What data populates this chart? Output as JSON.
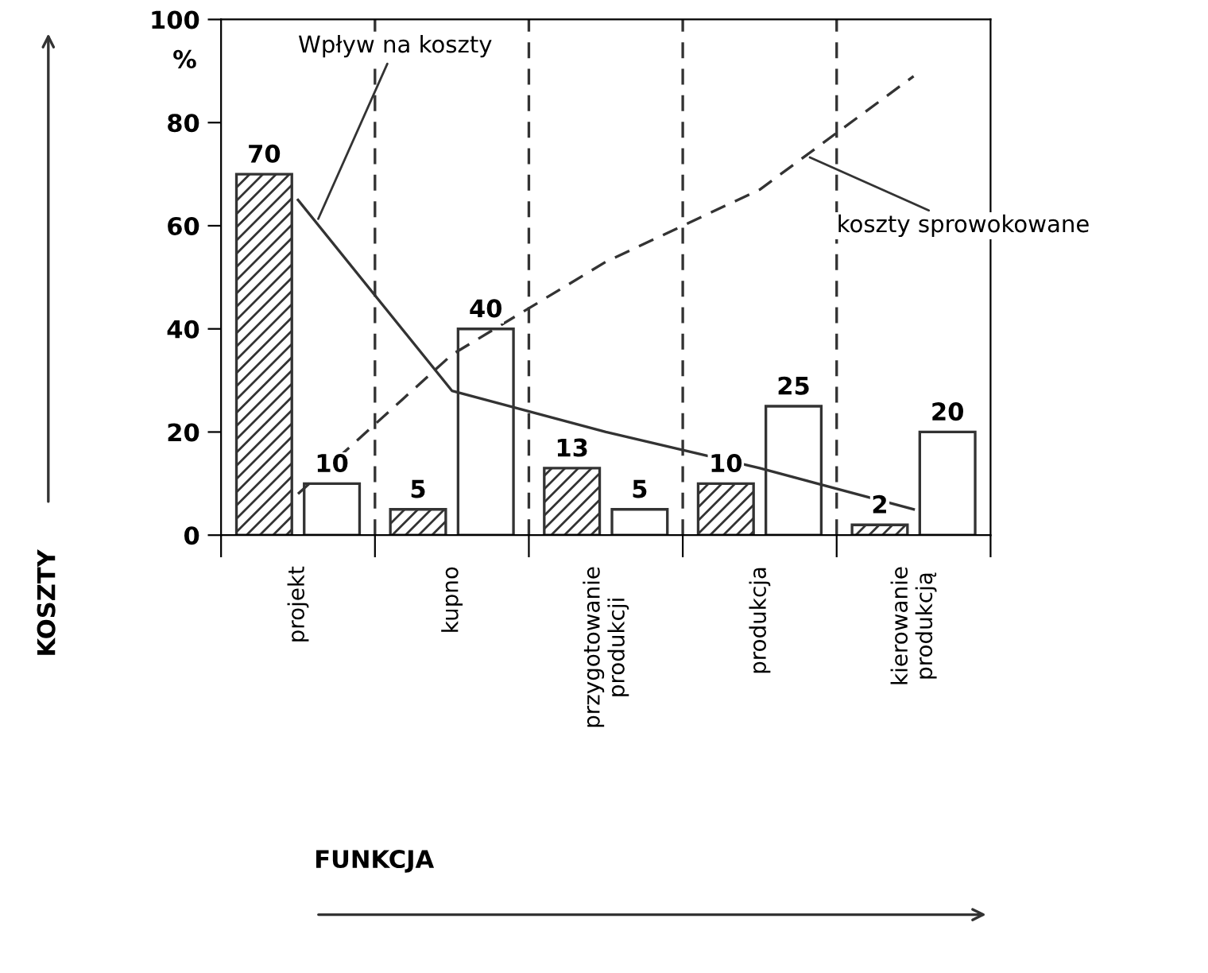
{
  "chart_data": {
    "type": "bar",
    "ylabel": "KOSZTY",
    "categories": [
      "projekt",
      "kupno",
      "przygotowanie\nprodukcji",
      "produkcja",
      "kierowanie\nprodukcją"
    ],
    "series": [
      {
        "color": "#333333",
        "values": [
          70,
          5,
          13,
          10,
          2
        ],
        "value_labels": [
          "70",
          "5",
          "13",
          "10",
          "2"
        ]
      },
      {
        "color": "#333333",
        "values": [
          10,
          40,
          5,
          25,
          20
        ],
        "value_labels": [
          "10",
          "40",
          "5",
          "25",
          "20"
        ]
      },
      {
        "type": "line",
        "name": "Wpływ na koszty",
        "color": "#333333",
        "line_style": "solid",
        "values": [
          65,
          28,
          20,
          13,
          5
        ]
      },
      {
        "type": "line",
        "name": "koszty sprowokowane",
        "color": "#333333",
        "line_style": "dashed",
        "values": [
          8,
          35,
          53,
          67,
          89
        ]
      }
    ],
    "ylim": [
      0,
      100
    ],
    "yticks": [
      0,
      20,
      40,
      60,
      80,
      100
    ],
    "grid": false,
    "annotations": [
      "%",
      "FUNKCJA"
    ]
  }
}
